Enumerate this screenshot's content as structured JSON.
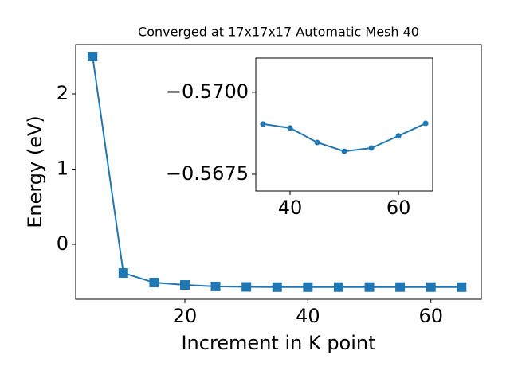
{
  "chart_data": [
    {
      "type": "line",
      "title": "Converged at 17x17x17 Automatic Mesh 40",
      "xlabel": "Increment in K point",
      "ylabel": "Energy (eV)",
      "x": [
        5,
        10,
        15,
        20,
        25,
        30,
        35,
        40,
        45,
        50,
        55,
        60,
        65
      ],
      "series": [
        {
          "color": "#1f77b4",
          "marker": "square",
          "values": [
            2.497,
            -0.381,
            -0.508,
            -0.54,
            -0.56,
            -0.566,
            -0.56903,
            -0.56891,
            -0.56847,
            -0.5682,
            -0.5683,
            -0.56867,
            -0.56905
          ]
        }
      ],
      "xlim": [
        2.25,
        68.2
      ],
      "ylim": [
        -0.73,
        2.656
      ],
      "xticks": [
        20,
        40,
        60
      ],
      "yticks": [
        0,
        1,
        2
      ]
    },
    {
      "type": "line",
      "x": [
        35,
        40,
        45,
        50,
        55,
        60,
        65
      ],
      "series": [
        {
          "color": "#1f77b4",
          "marker": "circle",
          "values": [
            -0.56903,
            -0.56891,
            -0.56847,
            -0.5682,
            -0.5683,
            -0.56867,
            -0.56905
          ]
        }
      ],
      "xlim": [
        33.68,
        66.3
      ],
      "ylim": [
        -0.56699,
        -0.57104
      ],
      "xticks": [
        40,
        60
      ],
      "yticks": [
        {
          "value": -0.57,
          "label": "−0.5700"
        },
        {
          "value": -0.5675,
          "label": "−0.5675"
        }
      ]
    }
  ]
}
